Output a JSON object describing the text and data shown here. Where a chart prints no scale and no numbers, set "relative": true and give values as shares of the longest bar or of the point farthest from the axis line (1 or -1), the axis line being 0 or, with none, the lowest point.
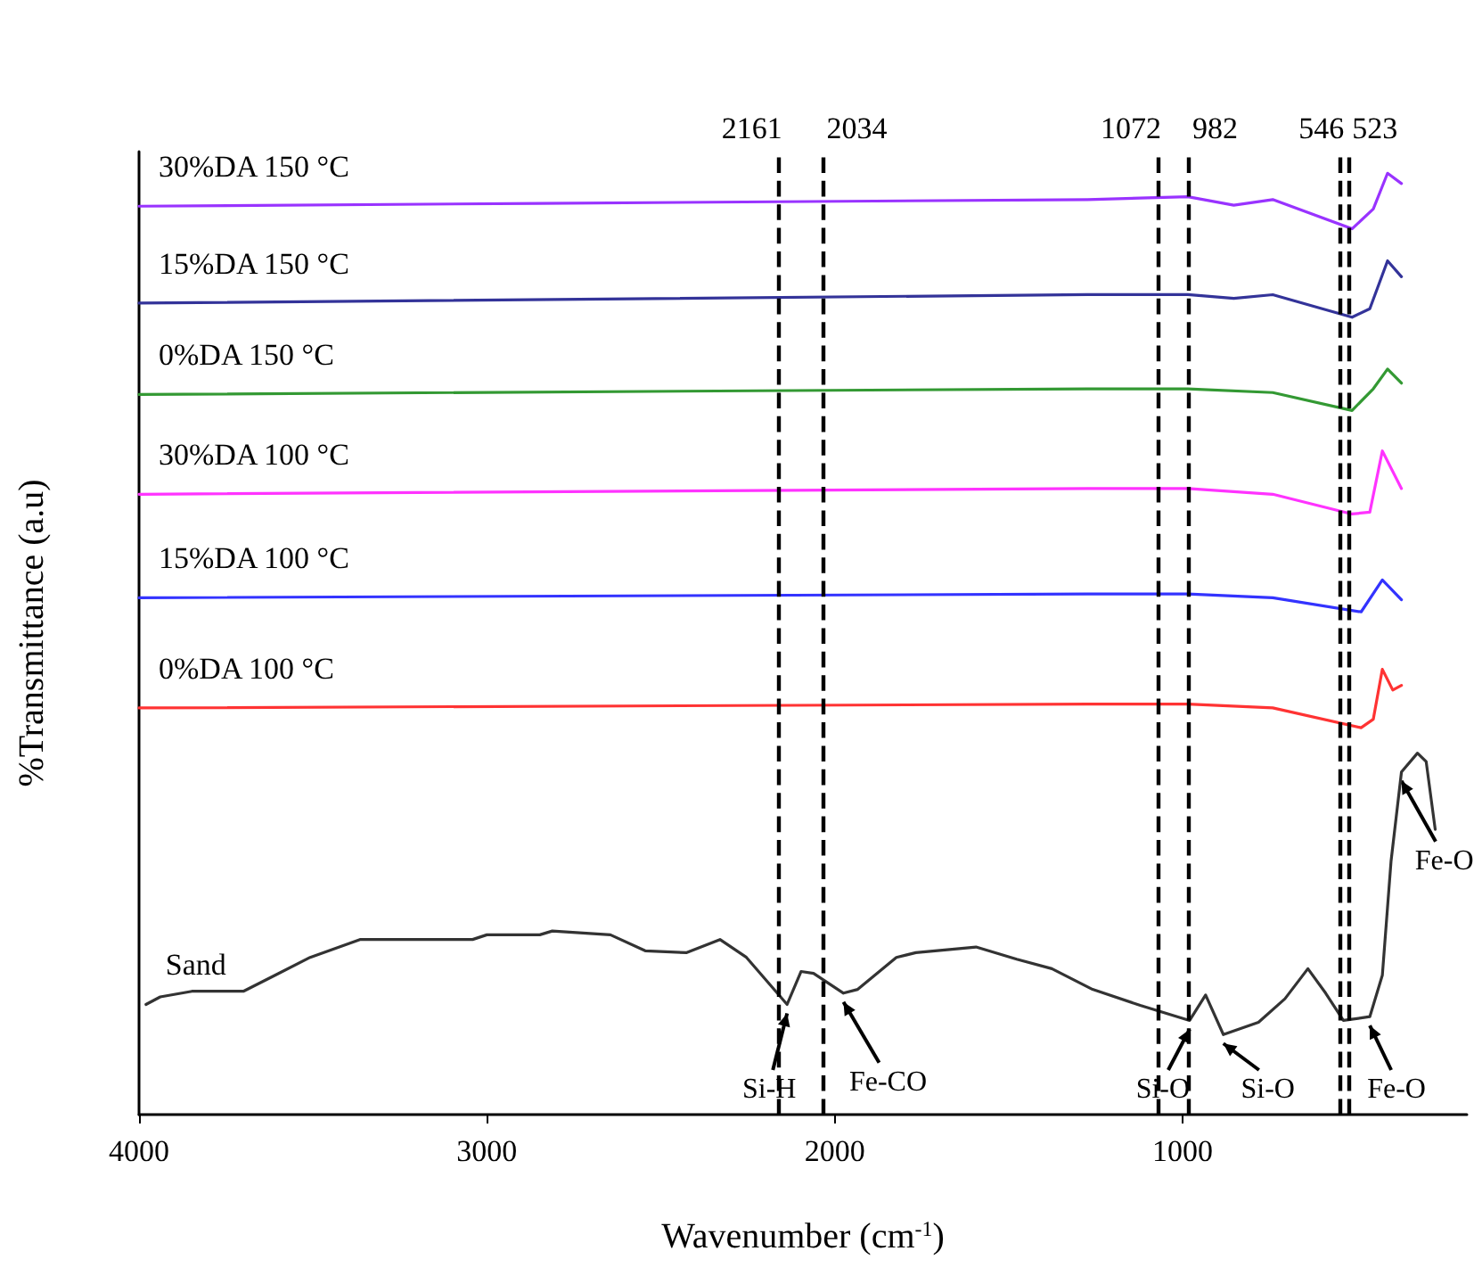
{
  "chart_data": {
    "type": "line",
    "relative": true,
    "xlabel": "Wavenumber (cm$^{-1}$)",
    "ylabel": "%Transmittance (a.u)",
    "xlim": [
      4000,
      183
    ],
    "xticks": [
      4000,
      3000,
      2000,
      1000
    ],
    "legend": false,
    "grid": false,
    "marker": "none",
    "line_style": "solid",
    "series": [
      {
        "name": "Sand",
        "color": "#333333",
        "x": [
          3980,
          3939,
          3848,
          3700,
          3609,
          3508,
          3365,
          3041,
          3000,
          2848,
          2812,
          2645,
          2545,
          2427,
          2330,
          2254,
          2137,
          2097,
          2061,
          1975,
          1934,
          1823,
          1767,
          1594,
          1477,
          1376,
          1259,
          1122,
          980,
          934,
          883,
          782,
          706,
          640,
          589,
          538,
          462,
          426,
          401,
          371,
          325,
          300,
          274
        ],
        "values": [
          0.117,
          0.125,
          0.131,
          0.131,
          0.148,
          0.167,
          0.186,
          0.186,
          0.191,
          0.191,
          0.195,
          0.191,
          0.174,
          0.172,
          0.186,
          0.167,
          0.117,
          0.152,
          0.15,
          0.129,
          0.133,
          0.167,
          0.172,
          0.178,
          0.165,
          0.155,
          0.133,
          0.116,
          0.1,
          0.127,
          0.085,
          0.098,
          0.123,
          0.155,
          0.129,
          0.1,
          0.104,
          0.148,
          0.269,
          0.364,
          0.384,
          0.375,
          0.303
        ]
      },
      {
        "name": "0%DA 100 °C",
        "color": "#ff3333",
        "x": [
          4000,
          1274,
          985,
          741,
          487,
          452,
          426,
          396,
          371
        ],
        "values": [
          0.432,
          0.436,
          0.436,
          0.432,
          0.411,
          0.42,
          0.473,
          0.451,
          0.456
        ]
      },
      {
        "name": "15%DA 100 °C",
        "color": "#3333ff",
        "x": [
          4000,
          1274,
          985,
          741,
          487,
          426,
          371
        ],
        "values": [
          0.549,
          0.553,
          0.553,
          0.549,
          0.534,
          0.568,
          0.547
        ]
      },
      {
        "name": "30%DA 100 °C",
        "color": "#ff33ff",
        "x": [
          4000,
          1274,
          985,
          741,
          513,
          462,
          426,
          371
        ],
        "values": [
          0.659,
          0.665,
          0.665,
          0.659,
          0.638,
          0.64,
          0.705,
          0.665
        ]
      },
      {
        "name": "0%DA 150 °C",
        "color": "#339933",
        "x": [
          4000,
          1274,
          985,
          741,
          513,
          452,
          411,
          371
        ],
        "values": [
          0.765,
          0.771,
          0.771,
          0.767,
          0.748,
          0.771,
          0.792,
          0.777
        ]
      },
      {
        "name": "15%DA 150 °C",
        "color": "#333399",
        "x": [
          4000,
          1274,
          985,
          853,
          741,
          513,
          462,
          411,
          371
        ],
        "values": [
          0.862,
          0.871,
          0.871,
          0.867,
          0.871,
          0.847,
          0.856,
          0.907,
          0.89
        ]
      },
      {
        "name": "30%DA 150 °C",
        "color": "#9933ff",
        "x": [
          4000,
          2848,
          1274,
          985,
          853,
          741,
          513,
          452,
          411,
          371
        ],
        "values": [
          0.965,
          0.968,
          0.972,
          0.975,
          0.966,
          0.972,
          0.941,
          0.962,
          1.0,
          0.989
        ]
      }
    ],
    "ref_lines": [
      {
        "axis": "x",
        "value": 2161,
        "label": "2161",
        "line_style": "dashed",
        "color": "#000000"
      },
      {
        "axis": "x",
        "value": 2034,
        "label": "2034",
        "line_style": "dashed",
        "color": "#000000"
      },
      {
        "axis": "x",
        "value": 1072,
        "label": "1072",
        "line_style": "dashed",
        "color": "#000000"
      },
      {
        "axis": "x",
        "value": 982,
        "label": "982",
        "line_style": "dashed",
        "color": "#000000"
      },
      {
        "axis": "x",
        "value": 546,
        "label": "546",
        "line_style": "dashed",
        "color": "#000000"
      },
      {
        "axis": "x",
        "value": 523,
        "label": "523",
        "line_style": "dashed",
        "color": "#000000"
      }
    ],
    "annotations": [
      {
        "text": "Si-H",
        "x": 2137,
        "y": 0.117
      },
      {
        "text": "Fe-CO",
        "x": 1975,
        "y": 0.129
      },
      {
        "text": "Si-O",
        "x": 980,
        "y": 0.1
      },
      {
        "text": "Si-O",
        "x": 883,
        "y": 0.085
      },
      {
        "text": "Fe-O",
        "x": 462,
        "y": 0.104
      },
      {
        "text": "Fe-O",
        "x": 371,
        "y": 0.364
      }
    ]
  }
}
